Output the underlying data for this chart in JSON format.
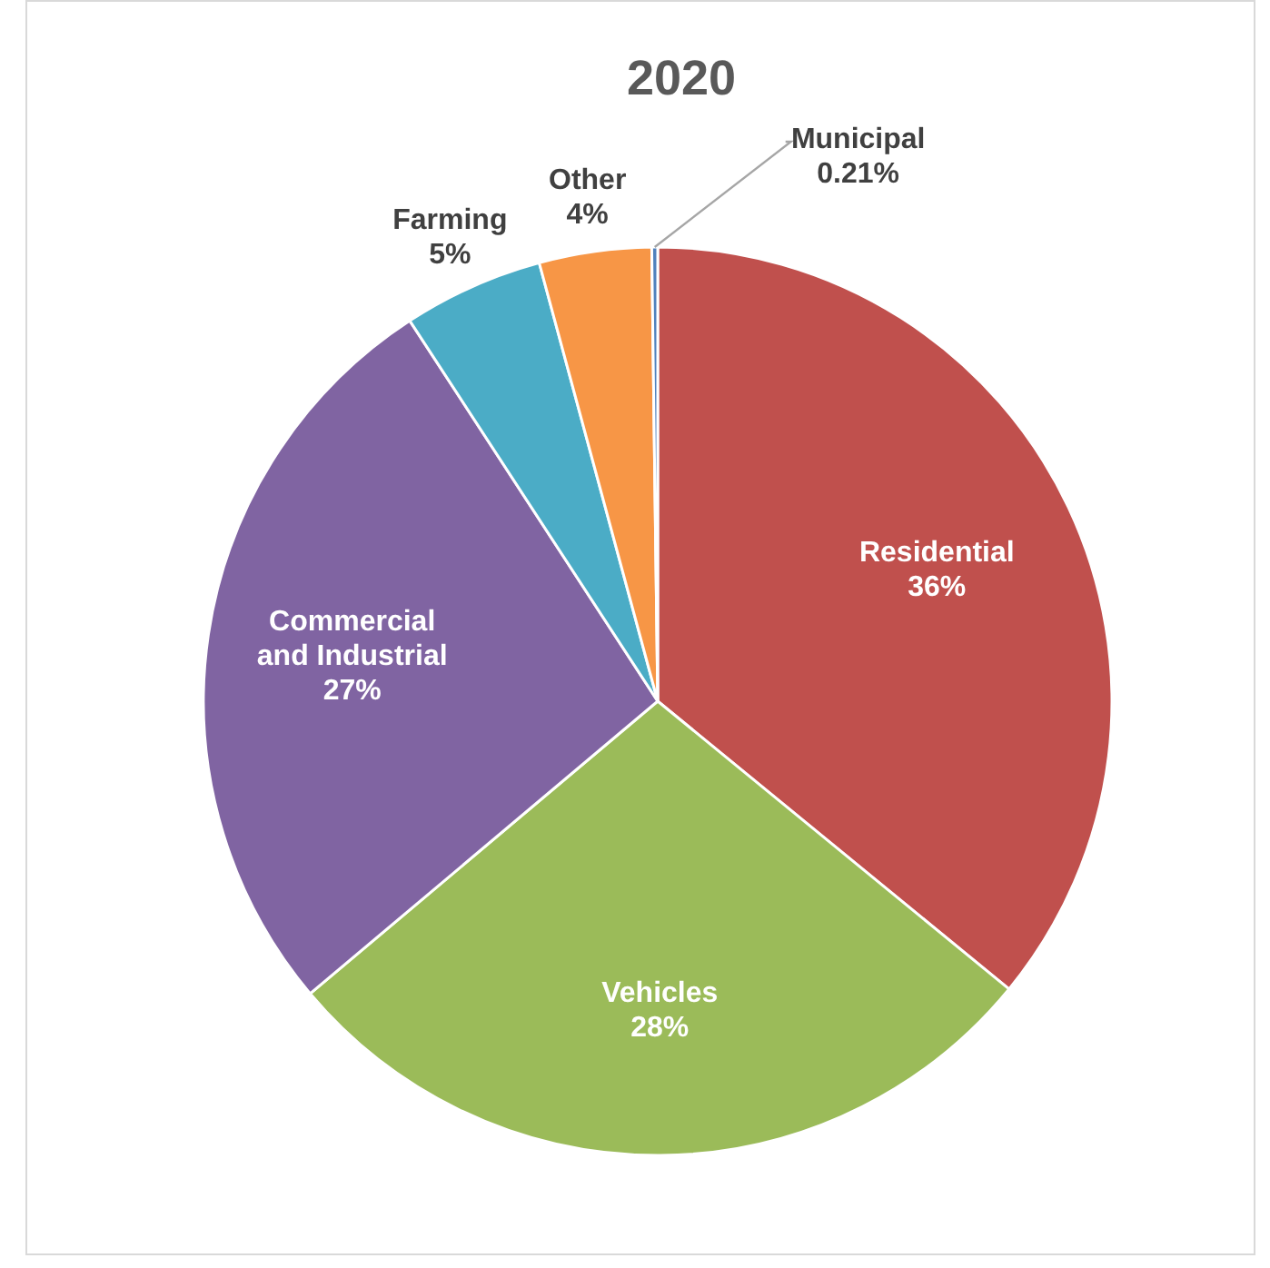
{
  "chart_data": {
    "type": "pie",
    "title": "2020",
    "categories": [
      "Residential",
      "Vehicles",
      "Commercial and Industrial",
      "Farming",
      "Other",
      "Municipal"
    ],
    "values": [
      36,
      28,
      27,
      5,
      4,
      0.21
    ],
    "value_labels": [
      "36%",
      "28%",
      "27%",
      "5%",
      "4%",
      "0.21%"
    ],
    "colors": [
      "#c0504d",
      "#9bbb59",
      "#8064a2",
      "#4bacc6",
      "#f79646",
      "#4f81bd"
    ]
  }
}
